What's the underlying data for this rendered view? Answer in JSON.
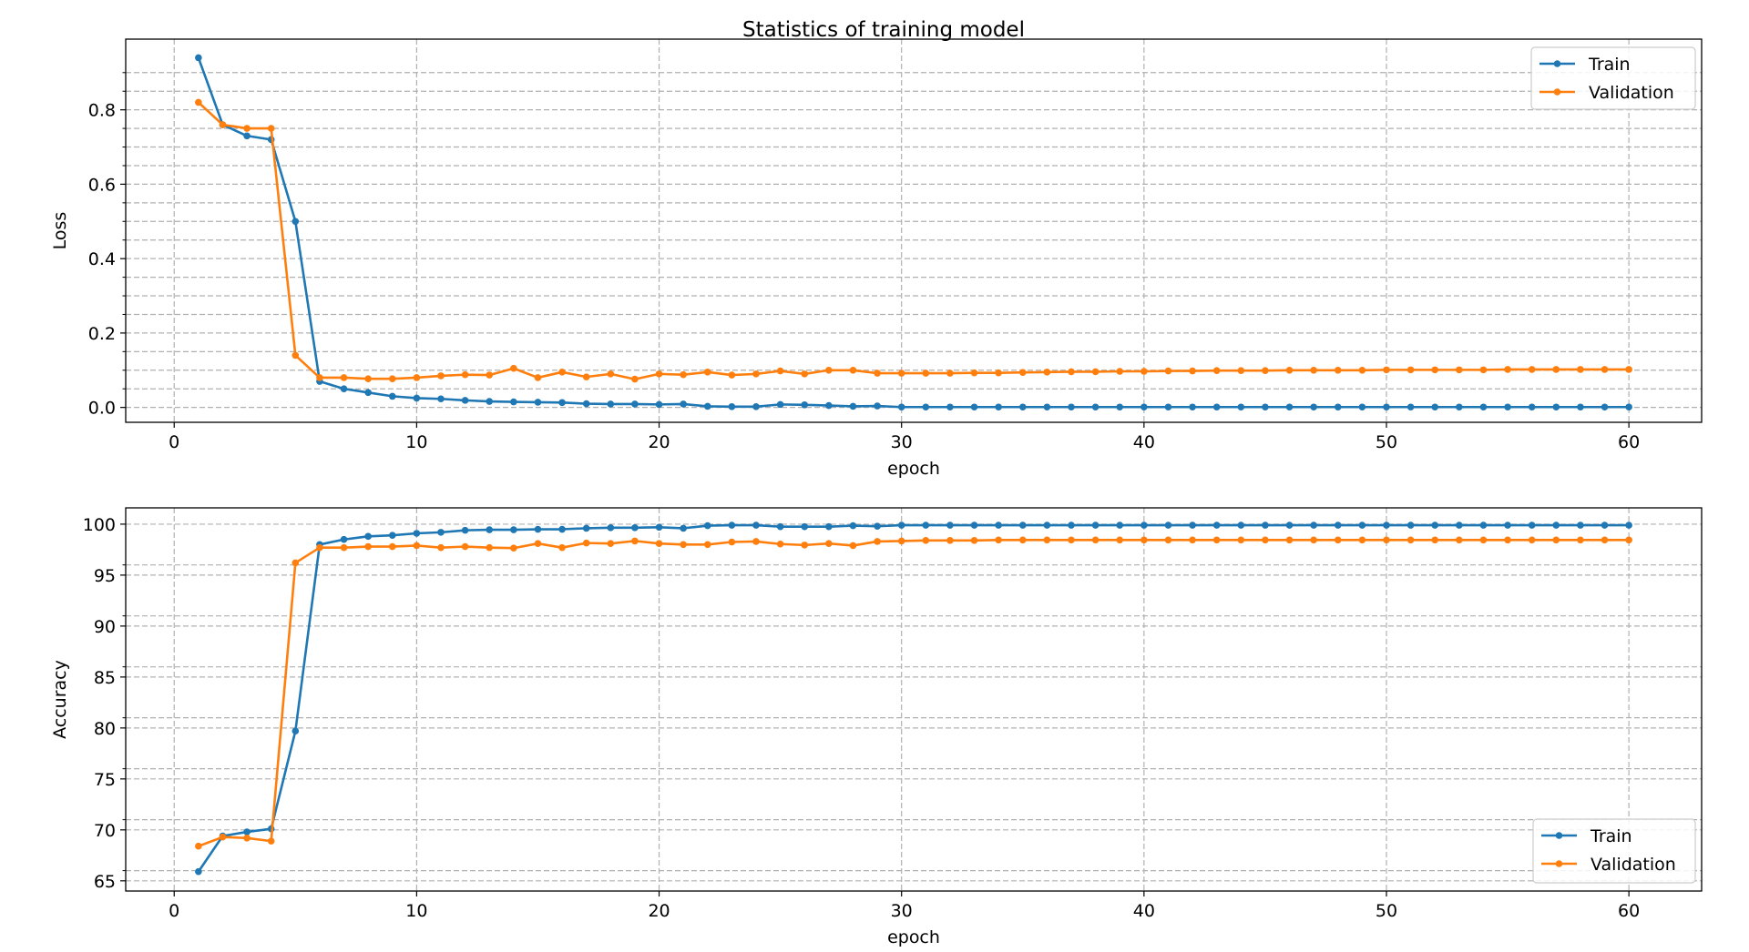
{
  "figure": {
    "title": "Statistics of training model"
  },
  "chart_data": [
    {
      "type": "line",
      "title": "Statistics of training model",
      "xlabel": "epoch",
      "ylabel": "Loss",
      "xlim": [
        -2,
        63
      ],
      "ylim": [
        -0.04,
        0.99
      ],
      "xticks": [
        0,
        10,
        20,
        30,
        40,
        50,
        60
      ],
      "yticks": [
        0.0,
        0.2,
        0.4,
        0.6,
        0.8
      ],
      "ytick_labels": [
        "0.0",
        "0.2",
        "0.4",
        "0.6",
        "0.8"
      ],
      "minor_yticks": [
        0.05,
        0.1,
        0.15,
        0.25,
        0.3,
        0.35,
        0.45,
        0.5,
        0.55,
        0.65,
        0.7,
        0.75,
        0.85,
        0.9
      ],
      "grid": true,
      "grid_style": "dashed",
      "legend_position": "top-right",
      "x": [
        1,
        2,
        3,
        4,
        5,
        6,
        7,
        8,
        9,
        10,
        11,
        12,
        13,
        14,
        15,
        16,
        17,
        18,
        19,
        20,
        21,
        22,
        23,
        24,
        25,
        26,
        27,
        28,
        29,
        30,
        31,
        32,
        33,
        34,
        35,
        36,
        37,
        38,
        39,
        40,
        41,
        42,
        43,
        44,
        45,
        46,
        47,
        48,
        49,
        50,
        51,
        52,
        53,
        54,
        55,
        56,
        57,
        58,
        59,
        60
      ],
      "series": [
        {
          "name": "Train",
          "color": "#1f77b4",
          "values": [
            0.94,
            0.76,
            0.73,
            0.72,
            0.5,
            0.07,
            0.05,
            0.04,
            0.03,
            0.025,
            0.023,
            0.019,
            0.016,
            0.015,
            0.014,
            0.013,
            0.01,
            0.009,
            0.009,
            0.008,
            0.009,
            0.003,
            0.002,
            0.002,
            0.008,
            0.007,
            0.005,
            0.003,
            0.004,
            0.001,
            0.001,
            0.001,
            0.001,
            0.001,
            0.001,
            0.001,
            0.001,
            0.001,
            0.001,
            0.001,
            0.001,
            0.001,
            0.001,
            0.001,
            0.001,
            0.001,
            0.001,
            0.001,
            0.001,
            0.001,
            0.001,
            0.001,
            0.001,
            0.001,
            0.001,
            0.001,
            0.001,
            0.001,
            0.001,
            0.001
          ]
        },
        {
          "name": "Validation",
          "color": "#ff7f0e",
          "values": [
            0.82,
            0.76,
            0.75,
            0.75,
            0.14,
            0.08,
            0.08,
            0.077,
            0.077,
            0.08,
            0.085,
            0.088,
            0.087,
            0.105,
            0.08,
            0.095,
            0.082,
            0.09,
            0.076,
            0.09,
            0.088,
            0.095,
            0.087,
            0.09,
            0.098,
            0.09,
            0.1,
            0.1,
            0.092,
            0.092,
            0.092,
            0.092,
            0.093,
            0.093,
            0.094,
            0.095,
            0.096,
            0.096,
            0.097,
            0.097,
            0.098,
            0.098,
            0.099,
            0.099,
            0.099,
            0.1,
            0.1,
            0.1,
            0.1,
            0.101,
            0.101,
            0.101,
            0.101,
            0.101,
            0.102,
            0.102,
            0.102,
            0.102,
            0.102,
            0.102
          ]
        }
      ]
    },
    {
      "type": "line",
      "xlabel": "epoch",
      "ylabel": "Accuracy",
      "xlim": [
        -2,
        63
      ],
      "ylim": [
        64,
        101.6
      ],
      "xticks": [
        0,
        10,
        20,
        30,
        40,
        50,
        60
      ],
      "yticks": [
        65,
        70,
        75,
        80,
        85,
        90,
        95,
        100
      ],
      "ytick_labels": [
        "65",
        "70",
        "75",
        "80",
        "85",
        "90",
        "95",
        "100"
      ],
      "minor_yticks": [
        66,
        71,
        76,
        81,
        86,
        91,
        96
      ],
      "grid": true,
      "grid_style": "dashed",
      "legend_position": "bottom-right",
      "x": [
        1,
        2,
        3,
        4,
        5,
        6,
        7,
        8,
        9,
        10,
        11,
        12,
        13,
        14,
        15,
        16,
        17,
        18,
        19,
        20,
        21,
        22,
        23,
        24,
        25,
        26,
        27,
        28,
        29,
        30,
        31,
        32,
        33,
        34,
        35,
        36,
        37,
        38,
        39,
        40,
        41,
        42,
        43,
        44,
        45,
        46,
        47,
        48,
        49,
        50,
        51,
        52,
        53,
        54,
        55,
        56,
        57,
        58,
        59,
        60
      ],
      "series": [
        {
          "name": "Train",
          "color": "#1f77b4",
          "values": [
            65.9,
            69.4,
            69.8,
            70.1,
            79.7,
            98.0,
            98.5,
            98.8,
            98.9,
            99.1,
            99.2,
            99.4,
            99.45,
            99.45,
            99.5,
            99.5,
            99.6,
            99.65,
            99.65,
            99.7,
            99.6,
            99.85,
            99.9,
            99.9,
            99.75,
            99.75,
            99.75,
            99.85,
            99.8,
            99.9,
            99.9,
            99.9,
            99.9,
            99.9,
            99.9,
            99.9,
            99.9,
            99.9,
            99.9,
            99.9,
            99.9,
            99.9,
            99.9,
            99.9,
            99.9,
            99.9,
            99.9,
            99.9,
            99.9,
            99.9,
            99.9,
            99.9,
            99.9,
            99.9,
            99.9,
            99.9,
            99.9,
            99.9,
            99.9,
            99.9
          ]
        },
        {
          "name": "Validation",
          "color": "#ff7f0e",
          "values": [
            68.4,
            69.3,
            69.2,
            68.9,
            96.2,
            97.7,
            97.7,
            97.8,
            97.8,
            97.9,
            97.7,
            97.8,
            97.7,
            97.65,
            98.1,
            97.7,
            98.15,
            98.1,
            98.35,
            98.1,
            98.0,
            98.0,
            98.25,
            98.3,
            98.05,
            97.95,
            98.1,
            97.9,
            98.3,
            98.35,
            98.4,
            98.4,
            98.4,
            98.45,
            98.45,
            98.45,
            98.45,
            98.45,
            98.45,
            98.45,
            98.45,
            98.45,
            98.45,
            98.45,
            98.45,
            98.45,
            98.45,
            98.45,
            98.45,
            98.45,
            98.45,
            98.45,
            98.45,
            98.45,
            98.45,
            98.45,
            98.45,
            98.45,
            98.45,
            98.45
          ]
        }
      ]
    }
  ]
}
